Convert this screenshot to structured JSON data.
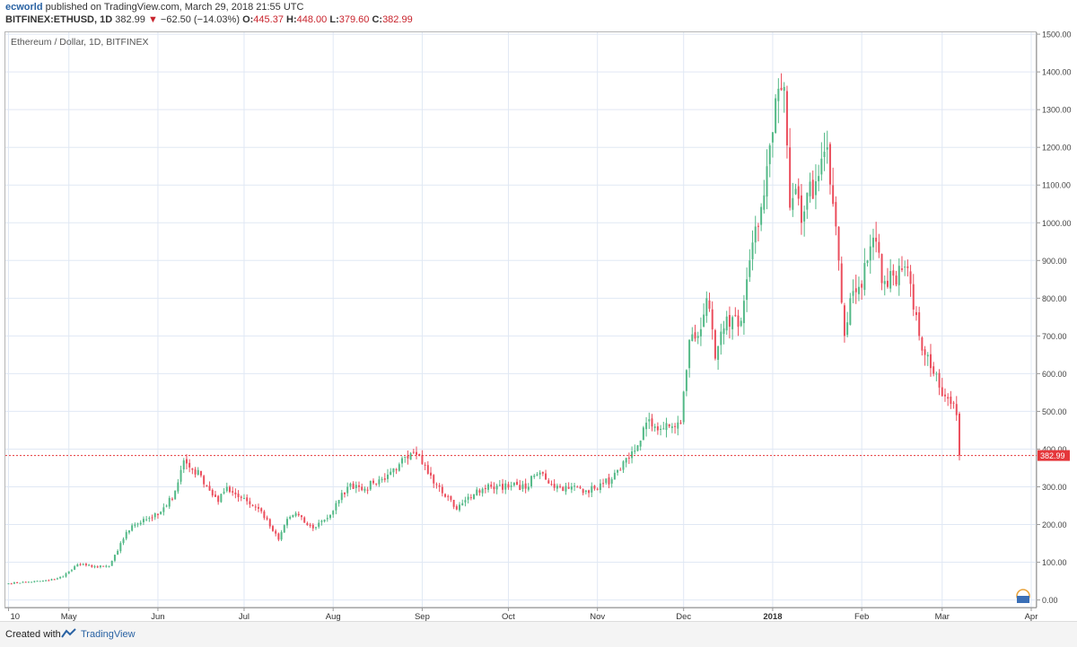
{
  "header": {
    "author": "ecworld",
    "published": "published on TradingView.com, March 29, 2018 21:55 UTC",
    "symbol": "BITFINEX:ETHUSD, 1D",
    "last": "382.99",
    "change": "−62.50 (−14.03%)",
    "o_label": "O:",
    "o_val": "445.37",
    "h_label": "H:",
    "h_val": "448.00",
    "l_label": "L:",
    "l_val": "379.60",
    "c_label": "C:",
    "c_val": "382.99"
  },
  "footer": {
    "created_with": "Created with",
    "brand": "TradingView"
  },
  "colors": {
    "up": "#53b987",
    "down": "#eb4d5c",
    "grid": "#e0e8f4",
    "price_line": "#e5373b"
  },
  "chart_data": {
    "type": "candlestick",
    "title": "Ethereum / Dollar, 1D, BITFINEX",
    "y_ticks": [
      "0.00",
      "100.00",
      "200.00",
      "300.00",
      "400.00",
      "500.00",
      "600.00",
      "700.00",
      "800.00",
      "900.00",
      "1000.00",
      "1100.00",
      "1200.00",
      "1300.00",
      "1400.00",
      "1500.00"
    ],
    "ylim": [
      -20,
      1505
    ],
    "x_labels": [
      {
        "day": 0,
        "label": "10"
      },
      {
        "day": 21,
        "label": "May"
      },
      {
        "day": 52,
        "label": "Jun"
      },
      {
        "day": 82,
        "label": "Jul"
      },
      {
        "day": 113,
        "label": "Aug"
      },
      {
        "day": 144,
        "label": "Sep"
      },
      {
        "day": 174,
        "label": "Oct"
      },
      {
        "day": 205,
        "label": "Nov"
      },
      {
        "day": 235,
        "label": "Dec"
      },
      {
        "day": 266,
        "label": "2018"
      },
      {
        "day": 297,
        "label": "Feb"
      },
      {
        "day": 325,
        "label": "Mar"
      },
      {
        "day": 356,
        "label": "Apr"
      }
    ],
    "x_start": "2017-04-10",
    "last_price": 382.99,
    "last_price_label": "382.99",
    "close_anchors": [
      [
        0,
        44
      ],
      [
        7,
        48
      ],
      [
        14,
        52
      ],
      [
        19,
        62
      ],
      [
        21,
        76
      ],
      [
        24,
        94
      ],
      [
        27,
        92
      ],
      [
        31,
        88
      ],
      [
        35,
        90
      ],
      [
        38,
        130
      ],
      [
        41,
        180
      ],
      [
        44,
        200
      ],
      [
        47,
        215
      ],
      [
        52,
        225
      ],
      [
        55,
        250
      ],
      [
        58,
        290
      ],
      [
        61,
        370
      ],
      [
        64,
        345
      ],
      [
        67,
        330
      ],
      [
        70,
        290
      ],
      [
        73,
        260
      ],
      [
        76,
        300
      ],
      [
        79,
        280
      ],
      [
        82,
        270
      ],
      [
        85,
        250
      ],
      [
        88,
        235
      ],
      [
        91,
        195
      ],
      [
        94,
        160
      ],
      [
        97,
        215
      ],
      [
        100,
        230
      ],
      [
        103,
        205
      ],
      [
        106,
        190
      ],
      [
        109,
        210
      ],
      [
        112,
        225
      ],
      [
        115,
        265
      ],
      [
        118,
        300
      ],
      [
        121,
        305
      ],
      [
        124,
        295
      ],
      [
        127,
        310
      ],
      [
        130,
        320
      ],
      [
        133,
        340
      ],
      [
        136,
        360
      ],
      [
        139,
        375
      ],
      [
        142,
        385
      ],
      [
        144,
        360
      ],
      [
        147,
        330
      ],
      [
        150,
        300
      ],
      [
        153,
        275
      ],
      [
        156,
        240
      ],
      [
        159,
        265
      ],
      [
        162,
        280
      ],
      [
        165,
        295
      ],
      [
        168,
        300
      ],
      [
        171,
        305
      ],
      [
        174,
        298
      ],
      [
        177,
        305
      ],
      [
        180,
        295
      ],
      [
        183,
        330
      ],
      [
        186,
        335
      ],
      [
        189,
        305
      ],
      [
        192,
        300
      ],
      [
        195,
        295
      ],
      [
        198,
        300
      ],
      [
        201,
        290
      ],
      [
        204,
        295
      ],
      [
        207,
        310
      ],
      [
        210,
        320
      ],
      [
        213,
        345
      ],
      [
        216,
        375
      ],
      [
        219,
        410
      ],
      [
        222,
        470
      ],
      [
        225,
        460
      ],
      [
        228,
        455
      ],
      [
        231,
        460
      ],
      [
        234,
        470
      ],
      [
        237,
        690
      ],
      [
        240,
        700
      ],
      [
        243,
        800
      ],
      [
        246,
        640
      ],
      [
        249,
        720
      ],
      [
        252,
        750
      ],
      [
        255,
        740
      ],
      [
        258,
        900
      ],
      [
        261,
        990
      ],
      [
        264,
        1150
      ],
      [
        267,
        1330
      ],
      [
        270,
        1360
      ],
      [
        272,
        1040
      ],
      [
        274,
        1090
      ],
      [
        276,
        1000
      ],
      [
        278,
        1080
      ],
      [
        281,
        1110
      ],
      [
        283,
        1170
      ],
      [
        285,
        1200
      ],
      [
        287,
        1050
      ],
      [
        289,
        900
      ],
      [
        291,
        700
      ],
      [
        293,
        800
      ],
      [
        296,
        830
      ],
      [
        299,
        900
      ],
      [
        302,
        950
      ],
      [
        304,
        840
      ],
      [
        306,
        830
      ],
      [
        308,
        860
      ],
      [
        311,
        875
      ],
      [
        313,
        880
      ],
      [
        315,
        770
      ],
      [
        317,
        700
      ],
      [
        320,
        650
      ],
      [
        323,
        600
      ],
      [
        326,
        540
      ],
      [
        328,
        520
      ],
      [
        330,
        490
      ],
      [
        331,
        383
      ]
    ],
    "y_axis_side": "right",
    "grid": true
  }
}
